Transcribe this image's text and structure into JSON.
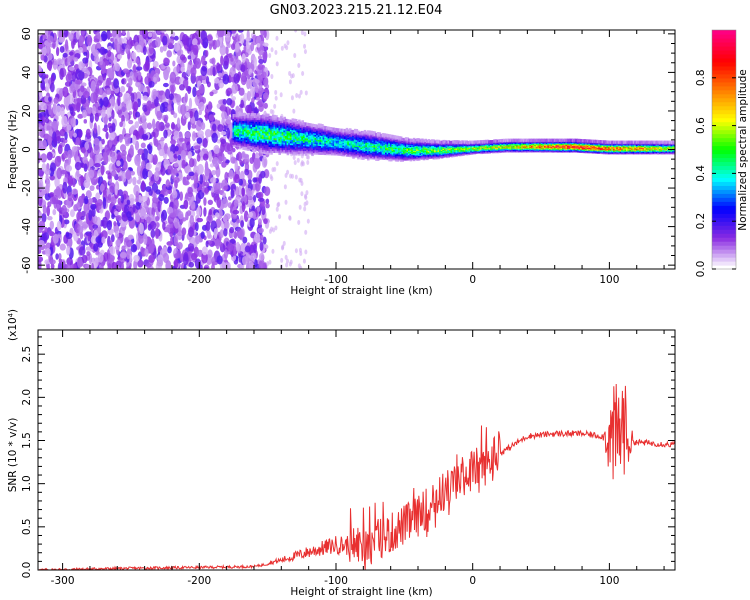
{
  "title": "GN03.2023.215.21.12.E04",
  "chart_data": [
    {
      "type": "heatmap",
      "xlabel": "Height of straight line (km)",
      "ylabel": "Frequency (Hz)",
      "xlim": [
        -318,
        148
      ],
      "ylim": [
        -62,
        62
      ],
      "xticks": [
        -300,
        -200,
        -100,
        0,
        100
      ],
      "yticks": [
        -60,
        -40,
        -20,
        0,
        20,
        40,
        60
      ],
      "colorbar": {
        "label": "Normalized spectral amplitude",
        "range": [
          0,
          1
        ],
        "ticks": [
          "0.0",
          "0.2",
          "0.4",
          "0.6",
          "0.8"
        ],
        "colors": [
          "#ffffff",
          "#8a2be2",
          "#0000ff",
          "#00ffff",
          "#00ff00",
          "#ffff00",
          "#ff8000",
          "#ff0000",
          "#ff0080"
        ]
      },
      "ridge": {
        "description_free": true,
        "x": [
          -175,
          -150,
          -125,
          -100,
          -75,
          -50,
          -25,
          0,
          25,
          50,
          75,
          100,
          125,
          148
        ],
        "center_freq": [
          10,
          8,
          6,
          4,
          2,
          0,
          0,
          1,
          2,
          2,
          2,
          1,
          1,
          1
        ],
        "half_width": [
          6,
          7,
          6,
          5,
          5,
          4,
          3,
          2,
          2,
          2,
          2,
          2,
          2,
          2
        ],
        "amplitude": [
          0.45,
          0.5,
          0.45,
          0.4,
          0.45,
          0.5,
          0.55,
          0.6,
          0.65,
          0.8,
          0.95,
          0.8,
          0.75,
          0.6
        ]
      },
      "noise_region_x": [
        -318,
        -150
      ]
    },
    {
      "type": "line",
      "xlabel": "Height of straight line (km)",
      "ylabel": "SNR (10 * v/v)",
      "y_multiplier_label": "(x10⁴)",
      "xlim": [
        -318,
        148
      ],
      "ylim": [
        0,
        2.78
      ],
      "xticks": [
        -300,
        -200,
        -100,
        0,
        100
      ],
      "yticks": [
        0.0,
        0.5,
        1.0,
        1.5,
        2.0,
        2.5
      ],
      "series": [
        {
          "color": "#e83030",
          "x": [
            -318,
            -250,
            -200,
            -160,
            -140,
            -120,
            -100,
            -80,
            -60,
            -40,
            -20,
            0,
            10,
            20,
            40,
            60,
            80,
            95,
            105,
            110,
            115,
            120,
            148
          ],
          "y": [
            0.0,
            0.02,
            0.03,
            0.04,
            0.1,
            0.18,
            0.25,
            0.22,
            0.35,
            0.55,
            0.85,
            1.1,
            1.15,
            1.35,
            1.55,
            1.58,
            1.58,
            1.55,
            1.5,
            1.7,
            1.5,
            1.48,
            1.45
          ]
        }
      ]
    }
  ]
}
